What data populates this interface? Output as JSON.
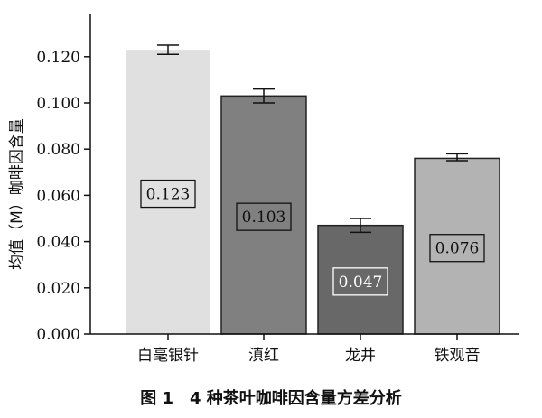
{
  "chart_data": {
    "type": "bar",
    "categories": [
      "白毫银针",
      "滇红",
      "龙井",
      "铁观音"
    ],
    "values": [
      0.123,
      0.103,
      0.047,
      0.076
    ],
    "value_labels": [
      "0.123",
      "0.103",
      "0.047",
      "0.076"
    ],
    "error_bars": [
      [
        0.121,
        0.125
      ],
      [
        0.1,
        0.106
      ],
      [
        0.044,
        0.05
      ],
      [
        0.075,
        0.078
      ]
    ],
    "bar_colors": [
      "#e0e0e0",
      "#808080",
      "#686868",
      "#b3b3b3"
    ],
    "ylabel": "均值（M）咖啡因含量",
    "yticks": [
      "0.000",
      "0.020",
      "0.040",
      "0.060",
      "0.080",
      "0.100",
      "0.120"
    ],
    "ylim": [
      0,
      0.14
    ],
    "grid": false
  },
  "caption": "图 1　4 种茶叶咖啡因含量方差分析"
}
